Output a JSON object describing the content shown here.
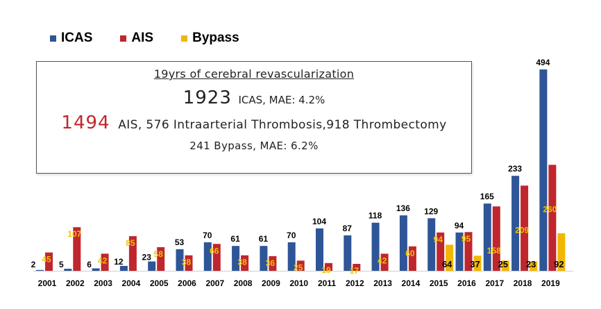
{
  "legend": {
    "items": [
      {
        "label": "ICAS",
        "color": "#2e5597"
      },
      {
        "label": "AIS",
        "color": "#c0262d"
      },
      {
        "label": "Bypass",
        "color": "#f2b705"
      }
    ]
  },
  "info_box": {
    "title": "19yrs of cerebral revascularization",
    "icas_number": "1923",
    "icas_text": "ICAS, MAE: 4.2%",
    "ais_number": "1494",
    "ais_text": "AIS, 576 Intraarterial Thrombosis,918 Thrombectomy",
    "bypass_text": "241 Bypass, MAE: 6.2%"
  },
  "chart_data": {
    "type": "bar",
    "title": "",
    "xlabel": "",
    "ylabel": "",
    "ylim": [
      0,
      520
    ],
    "grid": false,
    "legend_position": "top-left",
    "categories": [
      "2001",
      "2002",
      "2003",
      "2004",
      "2005",
      "2006",
      "2007",
      "2008",
      "2009",
      "2010",
      "2011",
      "2012",
      "2013",
      "2014",
      "2015",
      "2016",
      "2017",
      "2018",
      "2019"
    ],
    "series": [
      {
        "name": "ICAS",
        "color": "#2e5597",
        "values": [
          2,
          5,
          6,
          12,
          23,
          53,
          70,
          61,
          61,
          70,
          104,
          87,
          118,
          136,
          129,
          94,
          165,
          233,
          494
        ],
        "labels": [
          "2",
          "5",
          "6",
          "12",
          "23",
          "53",
          "70",
          "61",
          "61",
          "70",
          "104",
          "87",
          "118",
          "136",
          "129",
          "94",
          "165",
          "233",
          "494"
        ]
      },
      {
        "name": "AIS",
        "color": "#c0262d",
        "values": [
          45,
          107,
          42,
          85,
          58,
          38,
          66,
          38,
          36,
          25,
          19,
          17,
          42,
          60,
          94,
          95,
          158,
          209,
          260
        ],
        "labels": [
          "45",
          "107",
          "42",
          "85",
          "58",
          "38",
          "66",
          "38",
          "36",
          "25",
          "19",
          "17",
          "42",
          "60",
          "94",
          "95",
          "158",
          "209",
          "260"
        ]
      },
      {
        "name": "Bypass",
        "color": "#f2b705",
        "values": [
          0,
          0,
          0,
          0,
          0,
          0,
          0,
          0,
          0,
          0,
          0,
          0,
          0,
          0,
          64,
          37,
          25,
          23,
          92
        ],
        "labels": [
          "",
          "",
          "",
          "",
          "",
          "",
          "",
          "",
          "",
          "",
          "",
          "",
          "",
          "",
          "64",
          "37",
          "25",
          "23",
          "92"
        ]
      }
    ]
  }
}
